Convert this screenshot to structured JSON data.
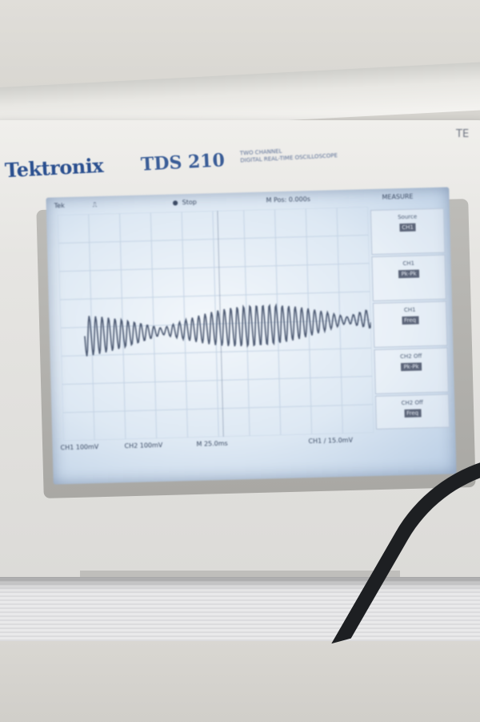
{
  "device": {
    "brand": "Tektronix",
    "model": "TDS 210",
    "model_sub_1": "TWO CHANNEL",
    "model_sub_2": "DIGITAL REAL-TIME OSCILLOSCOPE",
    "corner_tag": "TE"
  },
  "screen": {
    "trigger_mode": "Tek",
    "run_state": "Stop",
    "position": "M Pos: 0.000s",
    "menu_title": "MEASURE",
    "ch1_scale": "CH1 100mV",
    "ch2_scale": "CH2 100mV",
    "timebase": "M 25.0ms",
    "trigger_info": "CH1 ∕ 15.0mV",
    "menu": [
      {
        "label": "Source",
        "value": "CH1"
      },
      {
        "label": "CH1",
        "value": "Pk-Pk"
      },
      {
        "label": "CH1",
        "value": "Freq"
      },
      {
        "label": "CH2 Off",
        "value": "Pk-Pk"
      },
      {
        "label": "CH2 Off",
        "value": "Freq"
      }
    ]
  },
  "colors": {
    "screen_bg": "#e3edf6",
    "trace": "#4a5770",
    "grid": "#c4d3e4",
    "brand": "#2a4f8f"
  }
}
